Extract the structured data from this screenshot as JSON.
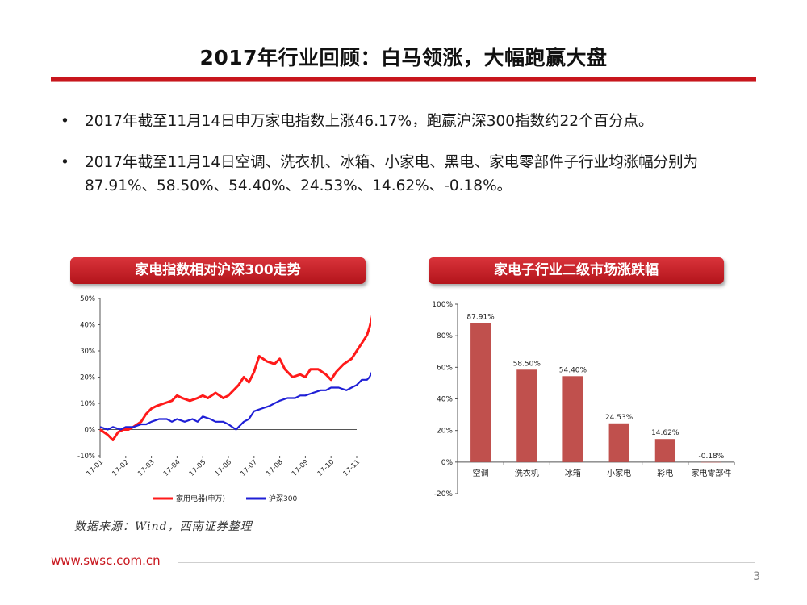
{
  "slide": {
    "title": "2017年行业回顾：白马领涨，大幅跑赢大盘",
    "bullets": [
      "2017年截至11月14日申万家电指数上涨46.17%，跑赢沪深300指数约22个百分点。",
      "2017年截至11月14日空调、洗衣机、冰箱、小家电、黑电、家电零部件子行业均涨幅分别为87.91%、58.50%、54.40%、24.53%、14.62%、-0.18%。"
    ],
    "bullet_symbol": "•",
    "source": "数据来源：Wind，西南证券整理",
    "footer_url": "www.swsc.com.cn",
    "page_number": "3"
  },
  "colors": {
    "brand_red": "#c8161d",
    "series_red": "#ff1a1a",
    "series_blue": "#1f1fd6",
    "bar_red": "#c0504d"
  },
  "chart_data": [
    {
      "type": "line",
      "title": "家电指数相对沪深300走势",
      "x_ticks": [
        "17-01",
        "17-02",
        "17-03",
        "17-04",
        "17-05",
        "17-06",
        "17-07",
        "17-08",
        "17-09",
        "17-10",
        "17-11"
      ],
      "ylim": [
        -10,
        50
      ],
      "y_ticks": [
        "-10%",
        "0%",
        "10%",
        "20%",
        "30%",
        "40%",
        "50%"
      ],
      "legend_position": "bottom",
      "series": [
        {
          "name": "家用电器(申万)",
          "color": "#ff1a1a",
          "x": [
            0,
            0.3,
            0.5,
            0.7,
            0.9,
            1.1,
            1.3,
            1.6,
            1.8,
            2.0,
            2.2,
            2.5,
            2.8,
            3.0,
            3.2,
            3.5,
            3.8,
            4.0,
            4.2,
            4.5,
            4.8,
            5.0,
            5.2,
            5.4,
            5.6,
            5.8,
            6.0,
            6.2,
            6.5,
            6.8,
            7.0,
            7.2,
            7.5,
            7.8,
            8.0,
            8.2,
            8.5,
            8.8,
            9.0,
            9.2,
            9.5,
            9.8,
            10.0,
            10.2,
            10.4,
            10.5,
            10.6,
            10.65,
            10.7
          ],
          "y": [
            0,
            -2,
            -4,
            -1,
            0,
            0,
            1,
            3,
            6,
            8,
            9,
            10,
            11,
            13,
            12,
            11,
            12,
            13,
            12,
            14,
            12,
            13,
            15,
            17,
            20,
            18,
            22,
            28,
            26,
            25,
            27,
            23,
            20,
            21,
            20,
            23,
            23,
            21,
            19,
            22,
            25,
            27,
            30,
            33,
            36,
            39,
            43,
            46,
            43
          ]
        },
        {
          "name": "沪深300",
          "color": "#1f1fd6",
          "x": [
            0,
            0.3,
            0.5,
            0.8,
            1.0,
            1.3,
            1.6,
            1.8,
            2.0,
            2.3,
            2.6,
            2.8,
            3.0,
            3.3,
            3.6,
            3.8,
            4.0,
            4.3,
            4.5,
            4.8,
            5.0,
            5.3,
            5.6,
            5.8,
            6.0,
            6.3,
            6.6,
            6.8,
            7.0,
            7.3,
            7.6,
            7.8,
            8.0,
            8.3,
            8.6,
            8.8,
            9.0,
            9.3,
            9.6,
            9.8,
            10.0,
            10.2,
            10.4,
            10.5,
            10.6,
            10.65,
            10.7
          ],
          "y": [
            1,
            0,
            1,
            0,
            1,
            1,
            2,
            2,
            3,
            4,
            4,
            3,
            4,
            3,
            4,
            3,
            5,
            4,
            3,
            3,
            2,
            0,
            3,
            4,
            7,
            8,
            9,
            10,
            11,
            12,
            12,
            13,
            13,
            14,
            15,
            15,
            16,
            16,
            15,
            16,
            17,
            19,
            19,
            20,
            22,
            23,
            22
          ]
        }
      ]
    },
    {
      "type": "bar",
      "title": "家电子行业二级市场涨跌幅",
      "categories": [
        "空调",
        "洗衣机",
        "冰箱",
        "小家电",
        "彩电",
        "家电零部件"
      ],
      "values": [
        87.91,
        58.5,
        54.4,
        24.53,
        14.62,
        -0.18
      ],
      "data_labels": [
        "87.91%",
        "58.50%",
        "54.40%",
        "24.53%",
        "14.62%",
        "-0.18%"
      ],
      "ylim": [
        -20,
        100
      ],
      "y_ticks": [
        "-20%",
        "0%",
        "20%",
        "40%",
        "60%",
        "80%",
        "100%"
      ],
      "color": "#c0504d"
    }
  ]
}
